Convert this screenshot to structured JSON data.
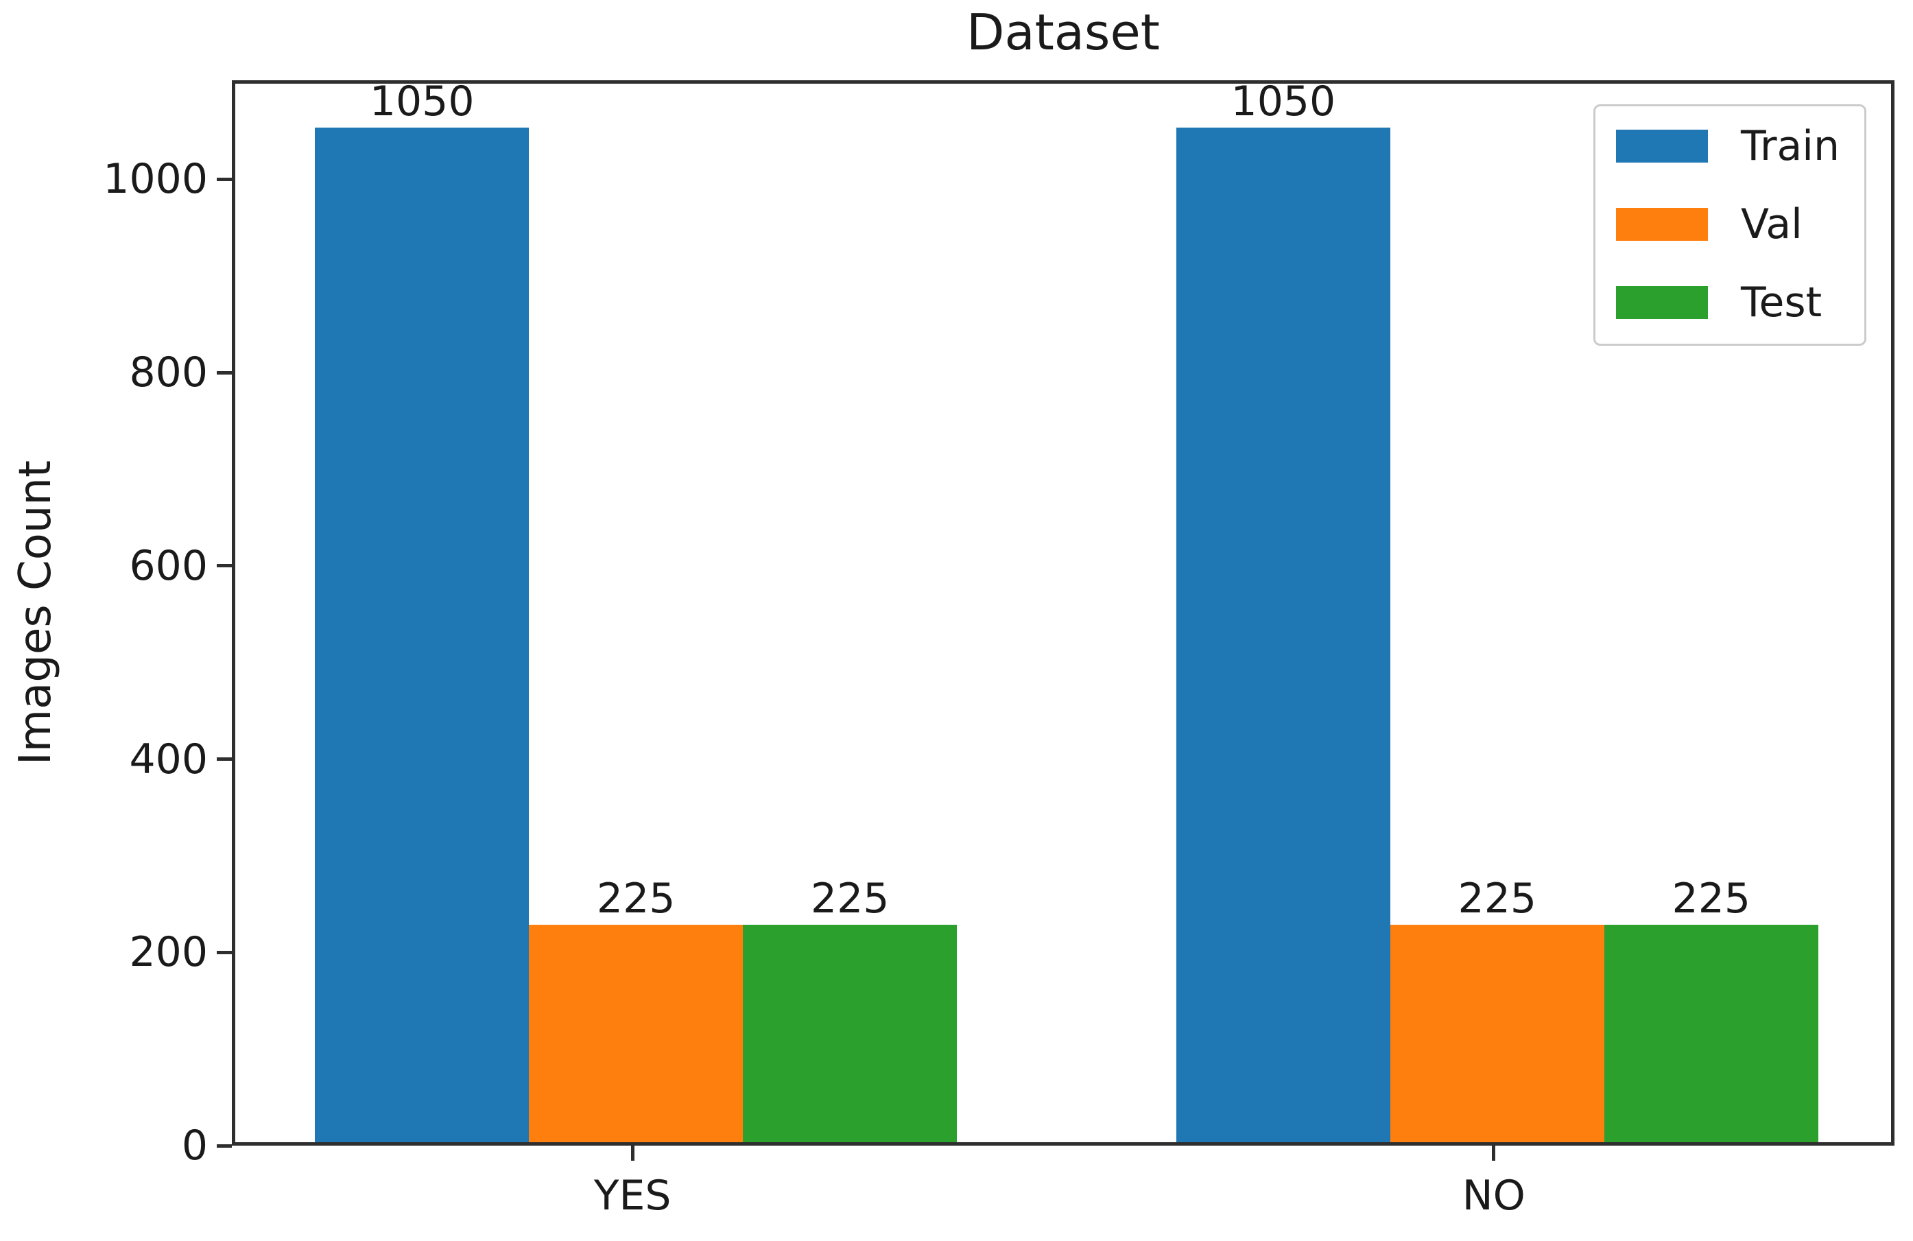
{
  "title": "Dataset",
  "ylabel": "Images Count",
  "chart_data": {
    "type": "bar",
    "title": "Dataset",
    "xlabel": "",
    "ylabel": "Images Count",
    "categories": [
      "YES",
      "NO"
    ],
    "series": [
      {
        "name": "Train",
        "color": "#1f77b4",
        "values": [
          1050,
          1050
        ]
      },
      {
        "name": "Val",
        "color": "#ff7f0e",
        "values": [
          225,
          225
        ]
      },
      {
        "name": "Test",
        "color": "#2ca02c",
        "values": [
          225,
          225
        ]
      }
    ],
    "bar_value_labels": [
      "1050",
      "225",
      "225",
      "1050",
      "225",
      "225"
    ],
    "yticks": [
      0,
      200,
      400,
      600,
      800,
      1000
    ],
    "ylim": [
      0,
      1102.5
    ],
    "grid": false,
    "legend_position": "upper right",
    "legend_items": [
      {
        "label": "Train",
        "color": "#1f77b4"
      },
      {
        "label": "Val",
        "color": "#ff7f0e"
      },
      {
        "label": "Test",
        "color": "#2ca02c"
      }
    ],
    "colors": {
      "background": "#ffffff",
      "spine": "#2e2e2e",
      "text": "#1a1a1a",
      "legend_border": "#cbcbcb"
    }
  }
}
